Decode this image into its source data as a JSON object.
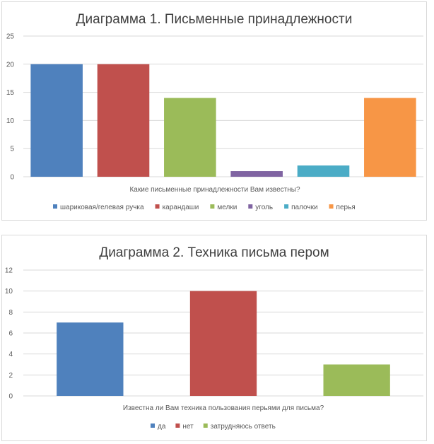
{
  "chart_data": [
    {
      "type": "bar",
      "title": "Диаграмма 1. Письменные принадлежности",
      "xlabel": "Какие письменные принадлежности Вам известны?",
      "ylabel": "",
      "ylim": [
        0,
        25
      ],
      "yticks": [
        0,
        5,
        10,
        15,
        20,
        25
      ],
      "grid": true,
      "legend_position": "bottom",
      "categories": [
        "шариковая/гелевая ручка",
        "карандаши",
        "мелки",
        "уголь",
        "палочки",
        "перья"
      ],
      "values": [
        20,
        20,
        14,
        1,
        2,
        14
      ],
      "colors": [
        "#4f81bd",
        "#c0504d",
        "#9bbb59",
        "#8064a2",
        "#4bacc6",
        "#f79646"
      ]
    },
    {
      "type": "bar",
      "title": "Диаграмма 2. Техника письма пером",
      "xlabel": "Известна ли Вам техника пользования перьями для письма?",
      "ylabel": "",
      "ylim": [
        0,
        12
      ],
      "yticks": [
        0,
        2,
        4,
        6,
        8,
        10,
        12
      ],
      "grid": true,
      "legend_position": "bottom",
      "categories": [
        "да",
        "нет",
        "затрудняюсь ответь"
      ],
      "values": [
        7,
        10,
        3
      ],
      "colors": [
        "#4f81bd",
        "#c0504d",
        "#9bbb59"
      ]
    }
  ]
}
